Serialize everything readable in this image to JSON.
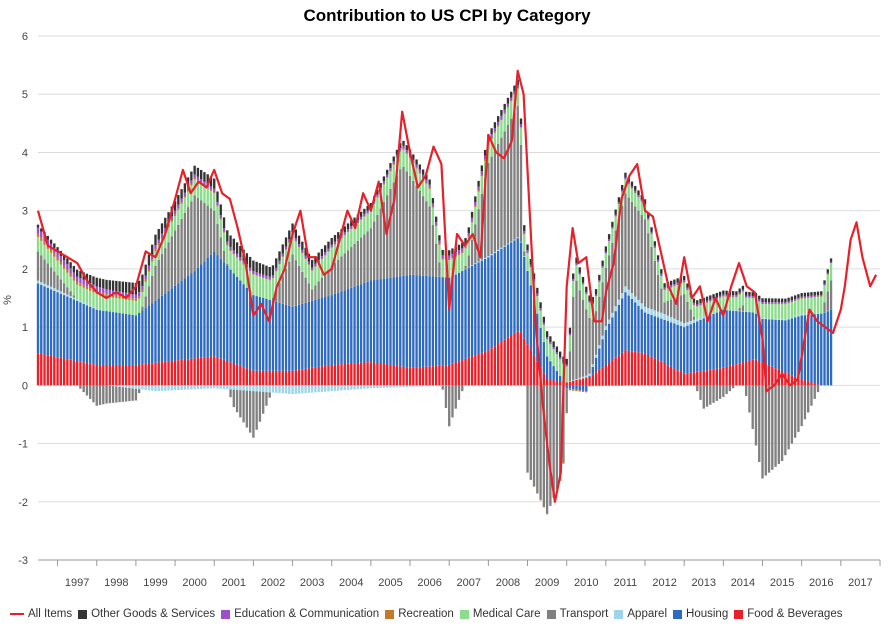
{
  "chart_data": {
    "type": "bar",
    "subtype": "stacked-bar-with-line",
    "title": "Contribution to US CPI by Category",
    "xlabel": "",
    "ylabel": "%",
    "ylim": [
      -3,
      6
    ],
    "yticks": [
      "-3",
      "-2",
      "-1",
      "0",
      "1",
      "2",
      "3",
      "4",
      "5",
      "6"
    ],
    "xlim": [
      1996.5,
      2018.0
    ],
    "categories": [
      "1997",
      "1998",
      "1999",
      "2000",
      "2001",
      "2002",
      "2003",
      "2004",
      "2005",
      "2006",
      "2007",
      "2008",
      "2009",
      "2010",
      "2011",
      "2012",
      "2013",
      "2014",
      "2015",
      "2016",
      "2017"
    ],
    "grid": true,
    "legend_position": "bottom",
    "series": [
      {
        "name": "All Items",
        "kind": "line",
        "color": "#e8202a",
        "points": [
          [
            1996.5,
            3.0
          ],
          [
            1996.75,
            2.4
          ],
          [
            1997.0,
            2.3
          ],
          [
            1997.25,
            2.2
          ],
          [
            1997.5,
            2.1
          ],
          [
            1997.75,
            1.8
          ],
          [
            1998.0,
            1.6
          ],
          [
            1998.25,
            1.5
          ],
          [
            1998.5,
            1.6
          ],
          [
            1998.75,
            1.5
          ],
          [
            1999.0,
            1.7
          ],
          [
            1999.25,
            2.3
          ],
          [
            1999.5,
            2.2
          ],
          [
            1999.75,
            2.6
          ],
          [
            2000.0,
            3.2
          ],
          [
            2000.2,
            3.7
          ],
          [
            2000.4,
            3.3
          ],
          [
            2000.6,
            3.5
          ],
          [
            2000.8,
            3.4
          ],
          [
            2001.0,
            3.7
          ],
          [
            2001.2,
            3.3
          ],
          [
            2001.4,
            3.2
          ],
          [
            2001.6,
            2.7
          ],
          [
            2001.8,
            2.1
          ],
          [
            2002.0,
            1.2
          ],
          [
            2002.2,
            1.4
          ],
          [
            2002.4,
            1.1
          ],
          [
            2002.6,
            1.7
          ],
          [
            2002.8,
            2.0
          ],
          [
            2003.0,
            2.6
          ],
          [
            2003.2,
            3.0
          ],
          [
            2003.4,
            2.2
          ],
          [
            2003.6,
            2.2
          ],
          [
            2003.8,
            1.9
          ],
          [
            2004.0,
            2.0
          ],
          [
            2004.2,
            2.5
          ],
          [
            2004.4,
            3.0
          ],
          [
            2004.6,
            2.7
          ],
          [
            2004.8,
            3.3
          ],
          [
            2005.0,
            3.0
          ],
          [
            2005.2,
            3.5
          ],
          [
            2005.4,
            2.6
          ],
          [
            2005.6,
            3.2
          ],
          [
            2005.8,
            4.7
          ],
          [
            2006.0,
            4.0
          ],
          [
            2006.2,
            3.4
          ],
          [
            2006.4,
            3.6
          ],
          [
            2006.6,
            4.1
          ],
          [
            2006.8,
            3.8
          ],
          [
            2007.0,
            1.3
          ],
          [
            2007.2,
            2.6
          ],
          [
            2007.4,
            2.4
          ],
          [
            2007.6,
            2.6
          ],
          [
            2007.8,
            2.2
          ],
          [
            2008.0,
            4.3
          ],
          [
            2008.2,
            4.0
          ],
          [
            2008.4,
            3.9
          ],
          [
            2008.6,
            4.2
          ],
          [
            2008.75,
            5.4
          ],
          [
            2008.9,
            5.0
          ],
          [
            2009.0,
            3.7
          ],
          [
            2009.2,
            1.1
          ],
          [
            2009.4,
            -0.4
          ],
          [
            2009.55,
            -1.3
          ],
          [
            2009.7,
            -2.0
          ],
          [
            2009.85,
            -1.5
          ],
          [
            2010.0,
            1.7
          ],
          [
            2010.15,
            2.7
          ],
          [
            2010.3,
            2.1
          ],
          [
            2010.5,
            2.2
          ],
          [
            2010.7,
            1.1
          ],
          [
            2010.9,
            1.1
          ],
          [
            2011.0,
            1.6
          ],
          [
            2011.2,
            2.1
          ],
          [
            2011.4,
            3.2
          ],
          [
            2011.6,
            3.6
          ],
          [
            2011.8,
            3.8
          ],
          [
            2012.0,
            3.0
          ],
          [
            2012.2,
            2.9
          ],
          [
            2012.4,
            2.3
          ],
          [
            2012.6,
            1.7
          ],
          [
            2012.8,
            1.4
          ],
          [
            2013.0,
            2.2
          ],
          [
            2013.2,
            1.5
          ],
          [
            2013.4,
            1.7
          ],
          [
            2013.6,
            1.1
          ],
          [
            2013.8,
            1.5
          ],
          [
            2014.0,
            1.2
          ],
          [
            2014.2,
            1.7
          ],
          [
            2014.4,
            2.1
          ],
          [
            2014.6,
            1.7
          ],
          [
            2014.8,
            1.6
          ],
          [
            2015.0,
            0.8
          ],
          [
            2015.1,
            -0.1
          ],
          [
            2015.3,
            0.0
          ],
          [
            2015.5,
            0.2
          ],
          [
            2015.7,
            0.0
          ],
          [
            2015.9,
            0.1
          ],
          [
            2016.0,
            0.5
          ],
          [
            2016.2,
            1.3
          ],
          [
            2016.4,
            1.1
          ],
          [
            2016.6,
            1.0
          ],
          [
            2016.8,
            0.9
          ],
          [
            2017.0,
            1.3
          ],
          [
            2017.1,
            1.7
          ],
          [
            2017.25,
            2.5
          ],
          [
            2017.4,
            2.8
          ],
          [
            2017.55,
            2.2
          ],
          [
            2017.75,
            1.7
          ],
          [
            2017.9,
            1.9
          ]
        ]
      },
      {
        "name": "Food & Beverages",
        "kind": "stacked-bar",
        "color": "#e8202a",
        "anchors": [
          [
            1996.5,
            0.55
          ],
          [
            1998.0,
            0.35
          ],
          [
            1999.0,
            0.35
          ],
          [
            2001.0,
            0.5
          ],
          [
            2002.0,
            0.25
          ],
          [
            2003.0,
            0.25
          ],
          [
            2004.0,
            0.35
          ],
          [
            2005.0,
            0.4
          ],
          [
            2006.0,
            0.3
          ],
          [
            2007.0,
            0.35
          ],
          [
            2008.0,
            0.6
          ],
          [
            2008.8,
            0.95
          ],
          [
            2009.5,
            0.1
          ],
          [
            2010.0,
            0.05
          ],
          [
            2010.6,
            0.15
          ],
          [
            2011.5,
            0.6
          ],
          [
            2012.0,
            0.55
          ],
          [
            2013.0,
            0.2
          ],
          [
            2014.0,
            0.3
          ],
          [
            2014.8,
            0.45
          ],
          [
            2016.0,
            0.1
          ],
          [
            2016.5,
            0.0
          ],
          [
            2016.75,
            0.0
          ]
        ]
      },
      {
        "name": "Housing",
        "kind": "stacked-bar",
        "color": "#2e6bbf",
        "anchors": [
          [
            1996.5,
            1.2
          ],
          [
            1998.0,
            0.95
          ],
          [
            1999.0,
            0.85
          ],
          [
            2000.5,
            1.5
          ],
          [
            2001.0,
            1.8
          ],
          [
            2002.0,
            1.3
          ],
          [
            2003.0,
            1.1
          ],
          [
            2004.0,
            1.2
          ],
          [
            2005.0,
            1.4
          ],
          [
            2006.0,
            1.6
          ],
          [
            2007.0,
            1.5
          ],
          [
            2008.0,
            1.6
          ],
          [
            2008.8,
            1.6
          ],
          [
            2009.5,
            0.4
          ],
          [
            2010.0,
            -0.05
          ],
          [
            2010.5,
            -0.1
          ],
          [
            2011.0,
            0.6
          ],
          [
            2011.5,
            1.0
          ],
          [
            2012.0,
            0.7
          ],
          [
            2013.0,
            0.8
          ],
          [
            2014.0,
            1.0
          ],
          [
            2015.0,
            0.75
          ],
          [
            2015.6,
            0.9
          ],
          [
            2016.0,
            1.1
          ],
          [
            2016.75,
            1.3
          ]
        ]
      },
      {
        "name": "Apparel",
        "kind": "stacked-bar",
        "color": "#9fd3e8",
        "anchors": [
          [
            1996.5,
            0.05
          ],
          [
            1998.0,
            0.02
          ],
          [
            1999.5,
            -0.1
          ],
          [
            2001.0,
            -0.05
          ],
          [
            2003.0,
            -0.15
          ],
          [
            2005.0,
            -0.05
          ],
          [
            2008.0,
            0.02
          ],
          [
            2010.0,
            0.0
          ],
          [
            2011.5,
            0.1
          ],
          [
            2012.5,
            0.1
          ],
          [
            2014.0,
            0.0
          ],
          [
            2016.0,
            0.02
          ],
          [
            2016.75,
            0.0
          ]
        ]
      },
      {
        "name": "Transport",
        "kind": "stacked-bar",
        "color": "#808080",
        "anchors": [
          [
            1996.5,
            0.5
          ],
          [
            1997.5,
            0.0
          ],
          [
            1998.0,
            -0.35
          ],
          [
            1999.0,
            -0.2
          ],
          [
            1999.5,
            0.6
          ],
          [
            2000.5,
            1.3
          ],
          [
            2001.0,
            0.7
          ],
          [
            2001.5,
            -0.3
          ],
          [
            2002.0,
            -0.8
          ],
          [
            2003.0,
            0.9
          ],
          [
            2003.5,
            0.2
          ],
          [
            2004.0,
            0.5
          ],
          [
            2005.0,
            0.9
          ],
          [
            2005.8,
            1.9
          ],
          [
            2006.5,
            1.2
          ],
          [
            2007.0,
            -0.7
          ],
          [
            2007.5,
            0.2
          ],
          [
            2008.0,
            1.6
          ],
          [
            2008.8,
            2.3
          ],
          [
            2009.0,
            -1.5
          ],
          [
            2009.5,
            -2.2
          ],
          [
            2009.9,
            -1.5
          ],
          [
            2010.2,
            1.8
          ],
          [
            2010.7,
            0.7
          ],
          [
            2011.0,
            1.0
          ],
          [
            2011.5,
            1.6
          ],
          [
            2012.0,
            1.5
          ],
          [
            2012.5,
            0.2
          ],
          [
            2013.0,
            0.5
          ],
          [
            2013.5,
            -0.4
          ],
          [
            2014.0,
            -0.2
          ],
          [
            2014.5,
            0.1
          ],
          [
            2015.0,
            -1.6
          ],
          [
            2015.5,
            -1.3
          ],
          [
            2016.0,
            -0.7
          ],
          [
            2016.5,
            0.0
          ],
          [
            2016.75,
            0.5
          ]
        ]
      },
      {
        "name": "Medical Care",
        "kind": "stacked-bar",
        "color": "#8bdc8b",
        "anchors": [
          [
            1996.5,
            0.25
          ],
          [
            2000.0,
            0.25
          ],
          [
            2002.0,
            0.35
          ],
          [
            2005.0,
            0.3
          ],
          [
            2008.0,
            0.3
          ],
          [
            2009.0,
            0.3
          ],
          [
            2011.0,
            0.25
          ],
          [
            2013.0,
            0.2
          ],
          [
            2015.0,
            0.25
          ],
          [
            2016.75,
            0.3
          ]
        ]
      },
      {
        "name": "Recreation",
        "kind": "stacked-bar",
        "color": "#c07a2a",
        "anchors": [
          [
            1996.5,
            0.06
          ],
          [
            2000.0,
            0.03
          ],
          [
            2003.0,
            0.0
          ],
          [
            2008.0,
            0.03
          ],
          [
            2010.0,
            -0.03
          ],
          [
            2012.0,
            0.01
          ],
          [
            2016.75,
            0.0
          ]
        ]
      },
      {
        "name": "Education & Communication",
        "kind": "stacked-bar",
        "color": "#9b4fc8",
        "anchors": [
          [
            1996.5,
            0.1
          ],
          [
            1999.0,
            0.07
          ],
          [
            2002.0,
            0.05
          ],
          [
            2005.0,
            0.04
          ],
          [
            2008.0,
            0.06
          ],
          [
            2010.0,
            0.03
          ],
          [
            2013.0,
            0.03
          ],
          [
            2016.75,
            0.02
          ]
        ]
      },
      {
        "name": "Other Goods & Services",
        "kind": "stacked-bar",
        "color": "#333333",
        "anchors": [
          [
            1996.5,
            0.05
          ],
          [
            1998.0,
            0.15
          ],
          [
            1999.0,
            0.2
          ],
          [
            2000.5,
            0.15
          ],
          [
            2001.5,
            0.2
          ],
          [
            2003.0,
            0.15
          ],
          [
            2005.0,
            0.08
          ],
          [
            2008.0,
            0.1
          ],
          [
            2010.0,
            0.1
          ],
          [
            2012.0,
            0.08
          ],
          [
            2014.0,
            0.07
          ],
          [
            2016.75,
            0.06
          ]
        ]
      }
    ],
    "legend": [
      "All Items",
      "Other Goods & Services",
      "Education & Communication",
      "Recreation",
      "Medical Care",
      "Transport",
      "Apparel",
      "Housing",
      "Food & Beverages"
    ]
  }
}
